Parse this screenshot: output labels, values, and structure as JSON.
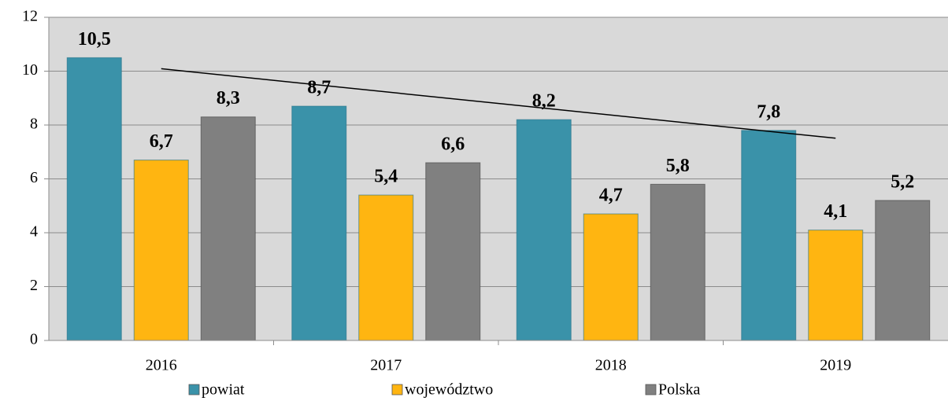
{
  "chart_data": {
    "type": "bar",
    "categories": [
      "2016",
      "2017",
      "2018",
      "2019"
    ],
    "series": [
      {
        "name": "powiat",
        "color": "#3a92a9",
        "values": [
          10.5,
          8.7,
          8.2,
          7.8
        ],
        "value_labels": [
          "10,5",
          "8,7",
          "8,2",
          "7,8"
        ]
      },
      {
        "name": "województwo",
        "color": "#ffb511",
        "values": [
          6.7,
          5.4,
          4.7,
          4.1
        ],
        "value_labels": [
          "6,7",
          "5,4",
          "4,7",
          "4,1"
        ]
      },
      {
        "name": "Polska",
        "color": "#808080",
        "values": [
          8.3,
          6.6,
          5.8,
          5.2
        ],
        "value_labels": [
          "8,3",
          "6,6",
          "5,8",
          "5,2"
        ]
      }
    ],
    "ylim": [
      0,
      12
    ],
    "yticks": [
      0,
      2,
      4,
      6,
      8,
      10,
      12
    ],
    "grid": true,
    "trendline": {
      "series": 0,
      "type": "linear"
    },
    "legend": "bottom"
  }
}
